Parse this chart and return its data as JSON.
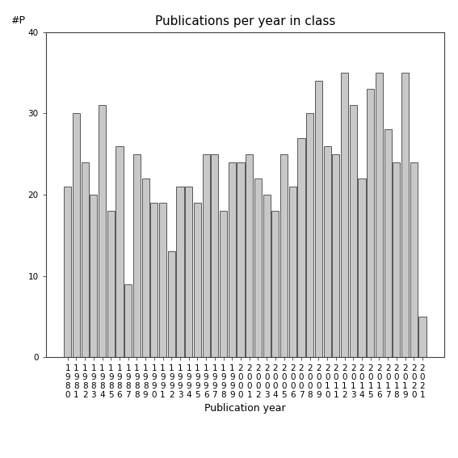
{
  "title": "Publications per year in class",
  "xlabel": "Publication year",
  "ylabel": "#P",
  "ylim": [
    0,
    40
  ],
  "yticks": [
    0,
    10,
    20,
    30,
    40
  ],
  "bar_color": "#c8c8c8",
  "bar_edgecolor": "#404040",
  "years": [
    1980,
    1981,
    1982,
    1983,
    1984,
    1985,
    1986,
    1987,
    1988,
    1989,
    1990,
    1991,
    1992,
    1993,
    1994,
    1995,
    1996,
    1997,
    1998,
    1999,
    2000,
    2001,
    2002,
    2003,
    2004,
    2005,
    2006,
    2007,
    2008,
    2009,
    2010,
    2011,
    2012,
    2013,
    2014,
    2015,
    2016,
    2017,
    2018,
    2019,
    2020,
    2021
  ],
  "values": [
    21,
    30,
    24,
    20,
    31,
    18,
    26,
    9,
    25,
    22,
    19,
    19,
    13,
    21,
    21,
    19,
    25,
    25,
    18,
    24,
    24,
    25,
    22,
    20,
    18,
    25,
    21,
    27,
    30,
    34,
    26,
    25,
    35,
    31,
    22,
    33,
    35,
    28,
    24,
    35,
    24,
    5
  ],
  "title_fontsize": 11,
  "label_fontsize": 9,
  "tick_fontsize": 7.5,
  "background_color": "#ffffff"
}
